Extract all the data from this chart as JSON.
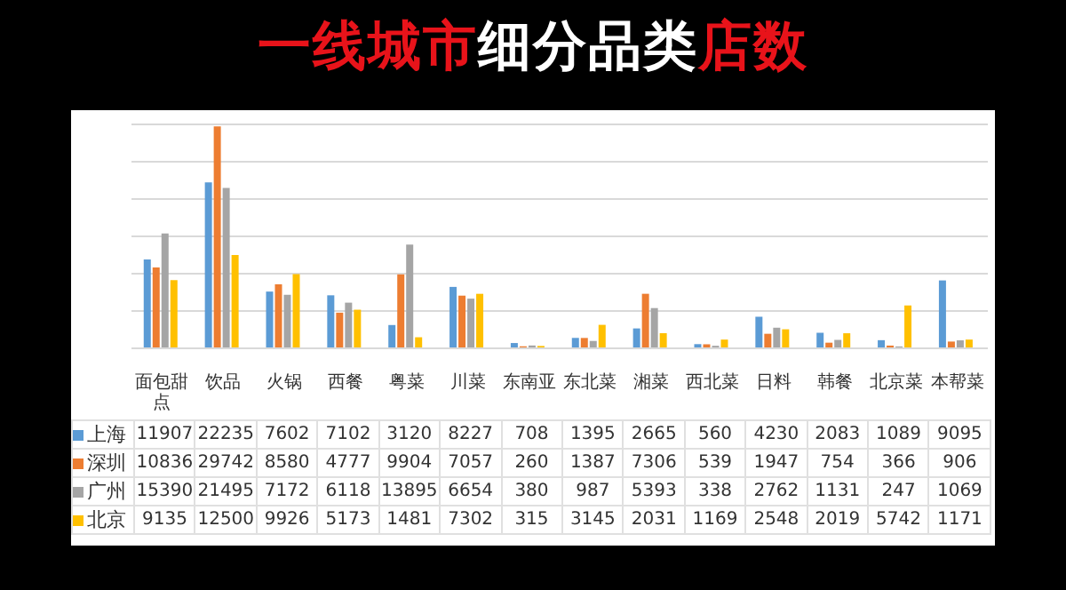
{
  "chart_data": {
    "type": "bar",
    "title": "一线城市细分品类店数",
    "categories": [
      "面包甜点",
      "饮品",
      "火锅",
      "西餐",
      "粤菜",
      "川菜",
      "东南亚",
      "东北菜",
      "湘菜",
      "西北菜",
      "日料",
      "韩餐",
      "北京菜",
      "本帮菜"
    ],
    "series": [
      {
        "name": "上海",
        "color": "#5b9bd5",
        "values": [
          11907,
          22235,
          7602,
          7102,
          3120,
          8227,
          708,
          1395,
          2665,
          560,
          4230,
          2083,
          1089,
          9095
        ]
      },
      {
        "name": "深圳",
        "color": "#ed7d31",
        "values": [
          10836,
          29742,
          8580,
          4777,
          9904,
          7057,
          260,
          1387,
          7306,
          539,
          1947,
          754,
          366,
          906
        ]
      },
      {
        "name": "广州",
        "color": "#a5a5a5",
        "values": [
          15390,
          21495,
          7172,
          6118,
          13895,
          6654,
          380,
          987,
          5393,
          338,
          2762,
          1131,
          247,
          1069
        ]
      },
      {
        "name": "北京",
        "color": "#ffc000",
        "values": [
          9135,
          12500,
          9926,
          5173,
          1481,
          7302,
          315,
          3145,
          2031,
          1169,
          2548,
          2019,
          5742,
          1171
        ]
      }
    ],
    "ylim": [
      0,
      30000
    ],
    "yticks": [
      {
        "value": 0,
        "label": null
      },
      {
        "value": 5000,
        "label": null
      },
      {
        "value": 10000,
        "label": null
      },
      {
        "value": 15000,
        "label": null
      },
      {
        "value": 20000,
        "label": null
      },
      {
        "value": 25000,
        "label": null
      },
      {
        "value": 30000,
        "label": null
      }
    ],
    "grid": "y",
    "data_labels": true,
    "legend": "bottom left"
  }
}
